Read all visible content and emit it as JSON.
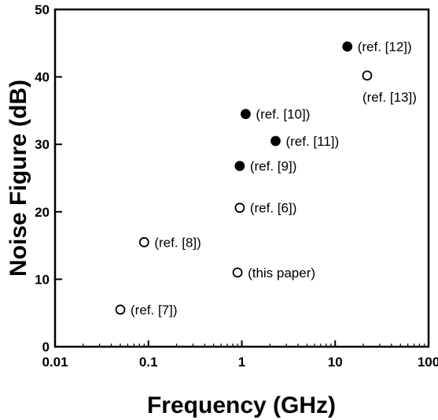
{
  "chart_data": {
    "type": "scatter",
    "xlabel": "Frequency (GHz)",
    "ylabel": "Noise Figure (dB)",
    "xscale": "log",
    "xlim": [
      0.01,
      100
    ],
    "ylim": [
      0,
      50
    ],
    "grid": false,
    "legend": "none",
    "x_ticks": [
      {
        "value": 0.01,
        "label": "0.01"
      },
      {
        "value": 0.1,
        "label": "0.1"
      },
      {
        "value": 1,
        "label": "1"
      },
      {
        "value": 10,
        "label": "10"
      },
      {
        "value": 100,
        "label": "100"
      }
    ],
    "y_ticks": [
      {
        "value": 0,
        "label": "0"
      },
      {
        "value": 10,
        "label": "10"
      },
      {
        "value": 20,
        "label": "20"
      },
      {
        "value": 30,
        "label": "30"
      },
      {
        "value": 40,
        "label": "40"
      },
      {
        "value": 50,
        "label": "50"
      }
    ],
    "points": [
      {
        "x": 13.5,
        "y": 44.5,
        "filled": true,
        "label": "(ref. [12])",
        "label_pos": "right"
      },
      {
        "x": 22,
        "y": 40.2,
        "filled": false,
        "label": "(ref. [13])",
        "label_pos": "below-right"
      },
      {
        "x": 1.1,
        "y": 34.5,
        "filled": true,
        "label": "(ref. [10])",
        "label_pos": "right"
      },
      {
        "x": 2.3,
        "y": 30.5,
        "filled": true,
        "label": "(ref. [11])",
        "label_pos": "right"
      },
      {
        "x": 0.95,
        "y": 26.8,
        "filled": true,
        "label": "(ref. [9])",
        "label_pos": "right"
      },
      {
        "x": 0.95,
        "y": 20.6,
        "filled": false,
        "label": "(ref. [6])",
        "label_pos": "right"
      },
      {
        "x": 0.09,
        "y": 15.5,
        "filled": false,
        "label": "(ref. [8])",
        "label_pos": "right"
      },
      {
        "x": 0.9,
        "y": 11.0,
        "filled": false,
        "label": "(this paper)",
        "label_pos": "right"
      },
      {
        "x": 0.05,
        "y": 5.5,
        "filled": false,
        "label": "(ref. [7])",
        "label_pos": "right"
      }
    ]
  }
}
